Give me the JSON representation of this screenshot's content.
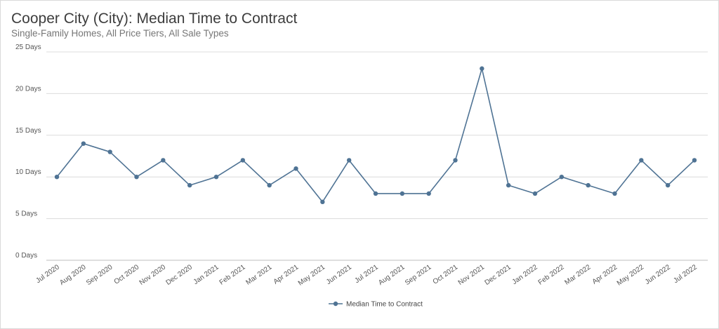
{
  "header": {
    "title": "Cooper City (City): Median Time to Contract",
    "subtitle": "Single-Family Homes, All Price Tiers, All Sale Types"
  },
  "colors": {
    "series": "#4f7394",
    "grid": "#dcdcdc",
    "axis": "#bdbdbd"
  },
  "chart_data": {
    "type": "line",
    "categories": [
      "Jul 2020",
      "Aug 2020",
      "Sep 2020",
      "Oct 2020",
      "Nov 2020",
      "Dec 2020",
      "Jan 2021",
      "Feb 2021",
      "Mar 2021",
      "Apr 2021",
      "May 2021",
      "Jun 2021",
      "Jul 2021",
      "Aug 2021",
      "Sep 2021",
      "Oct 2021",
      "Nov 2021",
      "Dec 2021",
      "Jan 2022",
      "Feb 2022",
      "Mar 2022",
      "Apr 2022",
      "May 2022",
      "Jun 2022",
      "Jul 2022"
    ],
    "series": [
      {
        "name": "Median Time to Contract",
        "values": [
          10,
          14,
          13,
          10,
          12,
          9,
          10,
          12,
          9,
          11,
          7,
          12,
          8,
          8,
          8,
          12,
          23,
          9,
          8,
          10,
          9,
          8,
          12,
          9,
          12
        ]
      }
    ],
    "yticks": [
      0,
      5,
      10,
      15,
      20,
      25
    ],
    "ytick_suffix": " Days",
    "ylim": [
      0,
      25
    ],
    "grid": true,
    "legend_position": "bottom-center"
  }
}
